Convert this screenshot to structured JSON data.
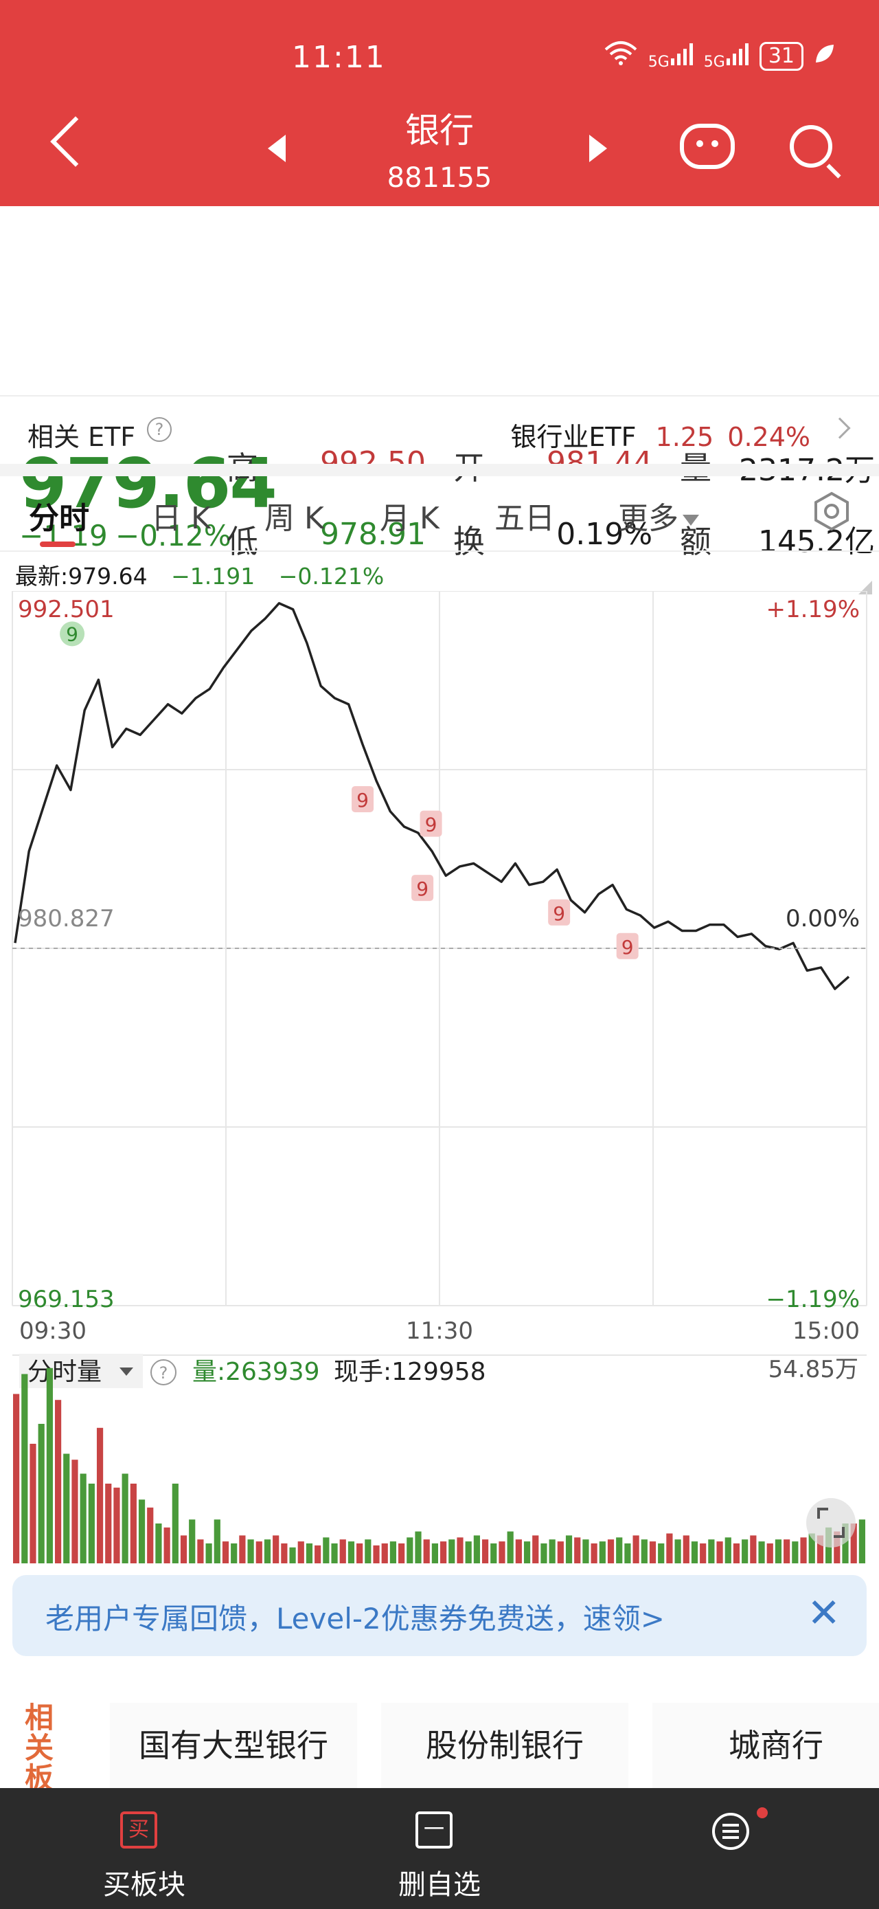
{
  "status_bar": {
    "time": "11:11",
    "signal1": "5G",
    "signal2": "5G",
    "battery": "31"
  },
  "header": {
    "title": "银行",
    "code": "881155"
  },
  "quote": {
    "price": "979.64",
    "change": "−1.19",
    "change_pct": "−0.12%",
    "high_label": "高",
    "high": "992.50",
    "low_label": "低",
    "low": "978.91",
    "open_label": "开",
    "open": "981.44",
    "turnover_label": "换",
    "turnover": "0.19%",
    "volume_label": "量",
    "volume": "2317.2万",
    "amount_label": "额",
    "amount": "145.2亿"
  },
  "etf": {
    "label": "相关 ETF",
    "help": "?",
    "name": "银行业ETF",
    "price": "1.25",
    "pct": "0.24%"
  },
  "tabs": [
    "分时",
    "日 K",
    "周 K",
    "月 K",
    "五日",
    "更多"
  ],
  "chart_info": {
    "latest": "最新:979.64",
    "change": "−1.191",
    "pct": "−0.121%"
  },
  "chart_data": {
    "type": "line",
    "y_top": "992.501",
    "y_mid": "980.827",
    "y_bottom": "969.153",
    "pct_top": "+1.19%",
    "pct_mid": "0.00%",
    "pct_bottom": "−1.19%",
    "x_labels": [
      "09:30",
      "11:30",
      "15:00"
    ],
    "ylim": [
      969.153,
      992.501
    ],
    "baseline": 980.827,
    "y": [
      981.0,
      984.0,
      985.4,
      986.8,
      986.0,
      988.6,
      989.6,
      987.4,
      988.0,
      987.8,
      988.3,
      988.8,
      988.5,
      989.0,
      989.3,
      990.0,
      990.6,
      991.2,
      991.6,
      992.1,
      991.9,
      990.8,
      989.4,
      989.0,
      988.8,
      987.5,
      986.3,
      985.3,
      984.8,
      984.6,
      984.0,
      983.2,
      983.5,
      983.6,
      983.3,
      983.0,
      983.6,
      982.9,
      983.0,
      983.4,
      982.4,
      982.0,
      982.6,
      982.9,
      982.1,
      981.9,
      981.5,
      981.7,
      981.4,
      981.4,
      981.6,
      981.6,
      981.2,
      981.3,
      980.9,
      980.8,
      981.0,
      980.1,
      980.2,
      979.5,
      979.9
    ],
    "magic9": [
      {
        "label": "9",
        "x": 0.41,
        "y": 986.8
      },
      {
        "label": "9",
        "x": 0.49,
        "y": 986.0
      },
      {
        "label": "9",
        "x": 0.48,
        "y": 983.9
      },
      {
        "label": "9",
        "x": 0.64,
        "y": 983.1
      },
      {
        "label": "9",
        "x": 0.72,
        "y": 982.0
      }
    ],
    "green9": {
      "label": "9",
      "x": 0.07,
      "y": 991.1
    }
  },
  "volume_panel": {
    "selector": "分时量",
    "help": "?",
    "vol_label": "量:263939",
    "hand_label": "现手:129958",
    "max_label": "54.85万",
    "bars": [
      85,
      95,
      60,
      70,
      98,
      82,
      55,
      52,
      45,
      40,
      68,
      40,
      38,
      45,
      40,
      32,
      28,
      20,
      18,
      40,
      14,
      22,
      12,
      10,
      22,
      11,
      10,
      14,
      12,
      11,
      12,
      14,
      10,
      8,
      11,
      10,
      9,
      13,
      10,
      12,
      11,
      10,
      12,
      9,
      10,
      11,
      10,
      13,
      16,
      12,
      10,
      11,
      12,
      13,
      11,
      14,
      12,
      10,
      11,
      16,
      12,
      11,
      14,
      10,
      12,
      11,
      14,
      13,
      12,
      10,
      11,
      12,
      13,
      10,
      14,
      12,
      11,
      10,
      15,
      12,
      14,
      11,
      10,
      12,
      11,
      13,
      10,
      12,
      14,
      11,
      10,
      12,
      12,
      11,
      13,
      15,
      14,
      18,
      16,
      20,
      20,
      22
    ],
    "colors": [
      "r",
      "g",
      "r",
      "g",
      "g",
      "r",
      "g",
      "r",
      "g",
      "g",
      "r",
      "r",
      "r",
      "g",
      "r",
      "g",
      "r",
      "g",
      "r",
      "g",
      "r",
      "g",
      "r",
      "g",
      "g",
      "r",
      "g",
      "r",
      "g",
      "r",
      "g",
      "r",
      "r",
      "g",
      "r",
      "g",
      "r",
      "g",
      "g",
      "r",
      "g",
      "r",
      "g",
      "r",
      "r",
      "g",
      "r",
      "g",
      "g",
      "r",
      "g",
      "r",
      "g",
      "r",
      "g",
      "g",
      "r",
      "g",
      "r",
      "g",
      "r",
      "g",
      "r",
      "g",
      "g",
      "r",
      "g",
      "r",
      "g",
      "r",
      "g",
      "r",
      "g",
      "g",
      "r",
      "g",
      "r",
      "g",
      "r",
      "g",
      "r",
      "g",
      "r",
      "g",
      "r",
      "g",
      "r",
      "g",
      "r",
      "g",
      "r",
      "g",
      "r",
      "g",
      "r",
      "g",
      "r",
      "g",
      "r",
      "g",
      "r",
      "g"
    ]
  },
  "banner": {
    "text": "老用户专属回馈，Level-2优惠券免费送，速领>",
    "close": "✕"
  },
  "related": {
    "label": "相关板",
    "items": [
      "国有大型银行",
      "股份制银行",
      "城商行"
    ]
  },
  "bottom_bar": {
    "buy": "买板块",
    "buy_icon": "买",
    "remove": "删自选",
    "remove_icon": "一"
  }
}
